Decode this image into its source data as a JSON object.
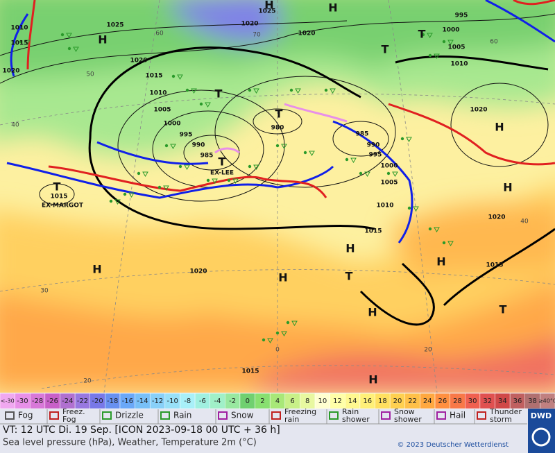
{
  "map": {
    "pressure_labels": [
      "1010",
      "1015",
      "1020",
      "1025",
      "1020",
      "1015",
      "1010",
      "1005",
      "1000",
      "995",
      "990",
      "985",
      "980",
      "1025",
      "1020",
      "1020",
      "985",
      "990",
      "995",
      "1000",
      "1005",
      "1010",
      "1015",
      "1020",
      "1020",
      "1015",
      "1020",
      "1015",
      "1015",
      "995",
      "1000",
      "1005",
      "1010"
    ],
    "systems": [
      "H",
      "H",
      "H",
      "T",
      "T",
      "T",
      "T",
      "T",
      "T",
      "H",
      "H",
      "H",
      "H",
      "H",
      "H",
      "T",
      "H",
      "T",
      "H"
    ],
    "storm_names": [
      "EX-LEE",
      "EX-MARGOT"
    ],
    "grid_labels": [
      "70",
      "60",
      "50",
      "40",
      "30",
      "20",
      "60",
      "40",
      "0",
      "20"
    ]
  },
  "scale": [
    "<-30",
    "-30",
    "-28",
    "-26",
    "-24",
    "-22",
    "-20",
    "-18",
    "-16",
    "-14",
    "-12",
    "-10",
    "-8",
    "-6",
    "-4",
    "-2",
    "0",
    "2",
    "4",
    "6",
    "8",
    "10",
    "12",
    "14",
    "16",
    "18",
    "20",
    "22",
    "24",
    "26",
    "28",
    "30",
    "32",
    "34",
    "36",
    "38",
    "≥40°C"
  ],
  "weather_legend": [
    [
      "Fog"
    ],
    [
      "Freez.",
      "Fog"
    ],
    [
      "Drizzle"
    ],
    [
      "Rain"
    ],
    [
      "Snow"
    ],
    [
      "Freezing",
      "rain"
    ],
    [
      "Rain",
      "shower"
    ],
    [
      "Snow",
      "shower"
    ],
    [
      "Hail"
    ],
    [
      "Thunder",
      "storm"
    ]
  ],
  "footer": {
    "valid_time": "VT: 12 UTC Di.  19 Sep. [ICON 2023-09-18  00 UTC + 36 h]",
    "description": "Sea level pressure (hPa), Weather, Temperature 2m (°C)",
    "copyright": "© 2023 Deutscher Wetterdienst",
    "logo": "DWD"
  }
}
